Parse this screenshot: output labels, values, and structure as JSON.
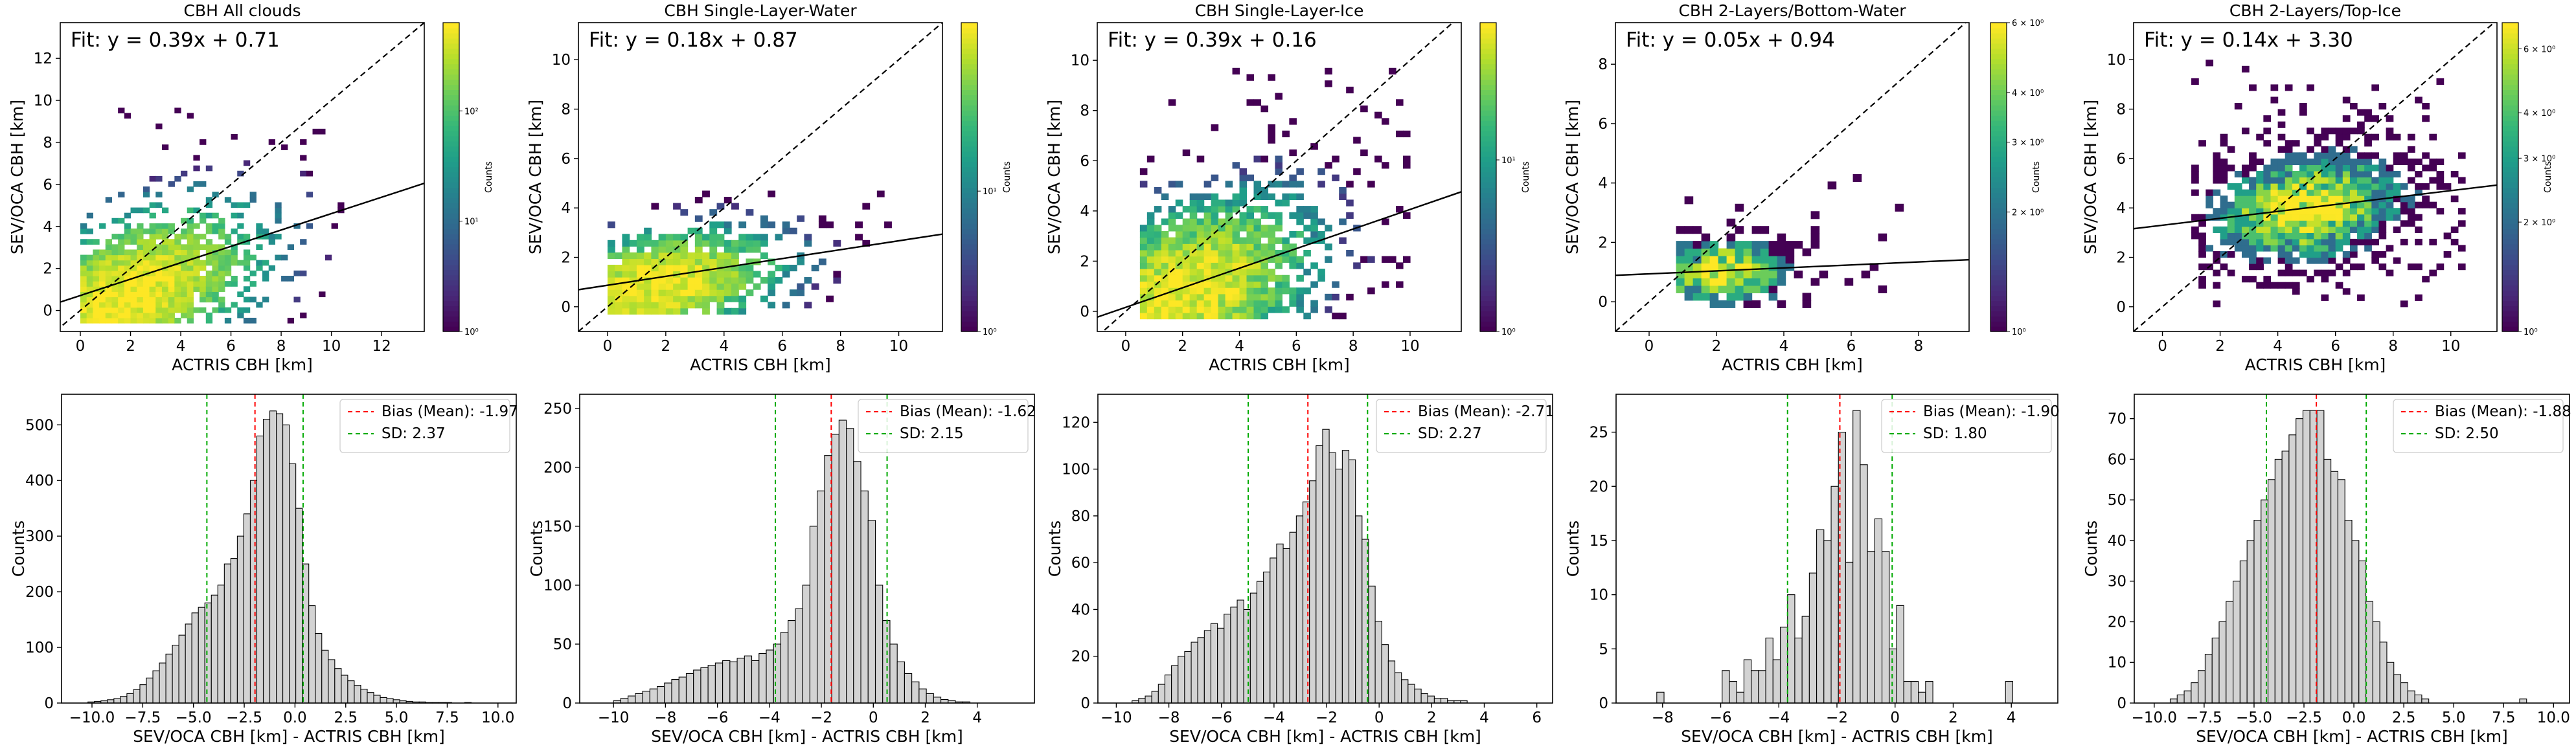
{
  "chart_data": [
    {
      "type": "heatmap",
      "title": "CBH All clouds",
      "xlabel": "ACTRIS CBH [km]",
      "ylabel": "SEV/OCA CBH [km]",
      "xlim": [
        -0.8,
        13.7
      ],
      "ylim": [
        -1.0,
        13.7
      ],
      "xticks": [
        0,
        2,
        4,
        6,
        8,
        10,
        12
      ],
      "yticks": [
        0,
        2,
        4,
        6,
        8,
        10,
        12
      ],
      "fit": {
        "label": "Fit: y = 0.39x + 0.71",
        "slope": 0.39,
        "intercept": 0.71
      },
      "one_to_one_line": true,
      "colorbar": {
        "label": "Counts",
        "scale": "log",
        "ticks": [
          "10⁰",
          "10¹",
          "10²"
        ],
        "ticks_exp": [
          0,
          1,
          2
        ],
        "vmax_exp": 2.8
      },
      "density": {
        "xmin": 0.0,
        "xmax": 10.5,
        "ymin": -0.6,
        "ymax": 9.5,
        "peak": [
          1.8,
          0.7
        ],
        "spread": [
          2.8,
          1.9
        ],
        "trend": 0.39
      }
    },
    {
      "type": "heatmap",
      "title": "CBH Single-Layer-Water",
      "xlabel": "ACTRIS CBH [km]",
      "ylabel": "SEV/OCA CBH [km]",
      "xlim": [
        -1.0,
        11.5
      ],
      "ylim": [
        -1.0,
        11.5
      ],
      "xticks": [
        0,
        2,
        4,
        6,
        8,
        10
      ],
      "yticks": [
        0,
        2,
        4,
        6,
        8,
        10
      ],
      "fit": {
        "label": "Fit: y = 0.18x + 0.87",
        "slope": 0.18,
        "intercept": 0.87
      },
      "one_to_one_line": true,
      "colorbar": {
        "label": "Counts",
        "scale": "log",
        "ticks": [
          "10⁰",
          "10¹"
        ],
        "ticks_exp": [
          0,
          1
        ],
        "vmax_exp": 2.2
      },
      "density": {
        "xmin": 0.0,
        "xmax": 10.0,
        "ymin": -0.3,
        "ymax": 5.2,
        "peak": [
          1.8,
          0.9
        ],
        "spread": [
          2.4,
          1.2
        ],
        "trend": 0.18
      }
    },
    {
      "type": "heatmap",
      "title": "CBH Single-Layer-Ice",
      "xlabel": "ACTRIS CBH [km]",
      "ylabel": "SEV/OCA CBH [km]",
      "xlim": [
        -1.0,
        11.8
      ],
      "ylim": [
        -0.8,
        11.5
      ],
      "xticks": [
        0,
        2,
        4,
        6,
        8,
        10
      ],
      "yticks": [
        0,
        2,
        4,
        6,
        8,
        10
      ],
      "fit": {
        "label": "Fit: y = 0.39x + 0.16",
        "slope": 0.39,
        "intercept": 0.16
      },
      "one_to_one_line": true,
      "colorbar": {
        "label": "Counts",
        "scale": "log",
        "ticks": [
          "10⁰",
          "10¹"
        ],
        "ticks_exp": [
          0,
          1
        ],
        "vmax_exp": 1.8
      },
      "density": {
        "xmin": 0.5,
        "xmax": 10.0,
        "ymin": -0.3,
        "ymax": 9.5,
        "peak": [
          2.0,
          0.6
        ],
        "spread": [
          2.8,
          2.2
        ],
        "trend": 0.39
      }
    },
    {
      "type": "heatmap",
      "title": "CBH 2-Layers/Bottom-Water",
      "xlabel": "ACTRIS CBH [km]",
      "ylabel": "SEV/OCA CBH [km]",
      "xlim": [
        -1.0,
        9.5
      ],
      "ylim": [
        -1.0,
        9.4
      ],
      "xticks": [
        0,
        2,
        4,
        6,
        8
      ],
      "yticks": [
        0,
        2,
        4,
        6,
        8
      ],
      "fit": {
        "label": "Fit: y = 0.05x + 0.94",
        "slope": 0.05,
        "intercept": 0.94
      },
      "one_to_one_line": true,
      "colorbar": {
        "label": "Counts",
        "scale": "log",
        "ticks": [
          "10⁰",
          "2 × 10⁰",
          "3 × 10⁰",
          "4 × 10⁰",
          "6 × 10⁰"
        ],
        "ticks_exp": [
          0,
          0.301,
          0.477,
          0.602,
          0.778
        ],
        "vmax_exp": 0.778
      },
      "density": {
        "xmin": 0.8,
        "xmax": 7.5,
        "ymin": -0.2,
        "ymax": 4.2,
        "peak": [
          2.2,
          1.0
        ],
        "spread": [
          1.4,
          0.8
        ],
        "trend": 0.05
      }
    },
    {
      "type": "heatmap",
      "title": "CBH 2-Layers/Top-Ice",
      "xlabel": "ACTRIS CBH [km]",
      "ylabel": "SEV/OCA CBH [km]",
      "xlim": [
        -1.0,
        11.6
      ],
      "ylim": [
        -1.0,
        11.5
      ],
      "xticks": [
        0,
        2,
        4,
        6,
        8,
        10
      ],
      "yticks": [
        0,
        2,
        4,
        6,
        8,
        10
      ],
      "fit": {
        "label": "Fit: y = 0.14x + 3.30",
        "slope": 0.14,
        "intercept": 3.3
      },
      "one_to_one_line": true,
      "colorbar": {
        "label": "Counts",
        "scale": "log",
        "ticks": [
          "10⁰",
          "2 × 10⁰",
          "3 × 10⁰",
          "4 × 10⁰",
          "6 × 10⁰"
        ],
        "ticks_exp": [
          0,
          0.301,
          0.477,
          0.602,
          0.778
        ],
        "vmax_exp": 0.85
      },
      "density": {
        "xmin": 1.0,
        "xmax": 10.5,
        "ymin": 0.0,
        "ymax": 10.0,
        "peak": [
          5.0,
          4.0
        ],
        "spread": [
          2.4,
          1.5
        ],
        "trend": 0.14
      }
    },
    {
      "type": "bar",
      "subtype": "histogram",
      "xlabel": "SEV/OCA CBH [km] - ACTRIS CBH [km]",
      "ylabel": "Counts",
      "xlim": [
        -11.5,
        10.9
      ],
      "ylim": [
        0,
        555
      ],
      "xticks": [
        -10.0,
        -7.5,
        -5.0,
        -2.5,
        0.0,
        2.5,
        5.0,
        7.5,
        10.0
      ],
      "xtick_labels": [
        "−10.0",
        "−7.5",
        "−5.0",
        "−2.5",
        "0.0",
        "2.5",
        "5.0",
        "7.5",
        "10.0"
      ],
      "yticks": [
        0,
        100,
        200,
        300,
        400,
        500
      ],
      "bin_start": -10.2,
      "bin_width": 0.32,
      "values": [
        2,
        3,
        4,
        6,
        8,
        12,
        17,
        24,
        33,
        45,
        58,
        72,
        88,
        104,
        122,
        142,
        162,
        172,
        180,
        194,
        212,
        250,
        260,
        300,
        340,
        400,
        480,
        510,
        525,
        520,
        500,
        430,
        350,
        250,
        175,
        125,
        95,
        78,
        62,
        50,
        40,
        32,
        25,
        19,
        14,
        10,
        8,
        6,
        4,
        3,
        2,
        2,
        1,
        1,
        1,
        1,
        0,
        0,
        1
      ],
      "series": [
        {
          "name": "Bias (Mean): -1.97",
          "value": -1.97,
          "color": "#ff0000"
        },
        {
          "name": "SD: 2.37",
          "lines": [
            -4.34,
            0.4
          ],
          "color": "#00aa00"
        }
      ]
    },
    {
      "type": "bar",
      "subtype": "histogram",
      "xlabel": "SEV/OCA CBH [km] - ACTRIS CBH [km]",
      "ylabel": "Counts",
      "xlim": [
        -11.3,
        6.2
      ],
      "ylim": [
        0,
        262
      ],
      "xticks": [
        -10,
        -8,
        -6,
        -4,
        -2,
        0,
        2,
        4
      ],
      "xtick_labels": [
        "−10",
        "−8",
        "−6",
        "−4",
        "−2",
        "0",
        "2",
        "4"
      ],
      "yticks": [
        0,
        50,
        100,
        150,
        200,
        250
      ],
      "bin_start": -10.0,
      "bin_width": 0.28,
      "values": [
        2,
        4,
        6,
        8,
        10,
        12,
        14,
        17,
        20,
        22,
        25,
        28,
        30,
        32,
        34,
        36,
        35,
        38,
        40,
        36,
        42,
        45,
        50,
        60,
        70,
        80,
        100,
        150,
        180,
        210,
        228,
        240,
        233,
        205,
        180,
        155,
        100,
        70,
        50,
        35,
        25,
        18,
        12,
        8,
        5,
        3,
        2,
        1,
        1
      ],
      "series": [
        {
          "name": "Bias (Mean): -1.62",
          "value": -1.62,
          "color": "#ff0000"
        },
        {
          "name": "SD: 2.15",
          "lines": [
            -3.77,
            0.53
          ],
          "color": "#00aa00"
        }
      ]
    },
    {
      "type": "bar",
      "subtype": "histogram",
      "xlabel": "SEV/OCA CBH [km] - ACTRIS CBH [km]",
      "ylabel": "Counts",
      "xlim": [
        -10.7,
        6.6
      ],
      "ylim": [
        0,
        132
      ],
      "xticks": [
        -10,
        -8,
        -6,
        -4,
        -2,
        0,
        2,
        4,
        6
      ],
      "xtick_labels": [
        "−10",
        "−8",
        "−6",
        "−4",
        "−2",
        "0",
        "2",
        "4",
        "6"
      ],
      "yticks": [
        0,
        20,
        40,
        60,
        80,
        100,
        120
      ],
      "bin_start": -9.4,
      "bin_width": 0.25,
      "values": [
        1,
        2,
        3,
        5,
        8,
        12,
        16,
        20,
        22,
        26,
        28,
        31,
        34,
        32,
        38,
        41,
        44,
        40,
        47,
        52,
        56,
        62,
        68,
        66,
        73,
        80,
        86,
        95,
        110,
        117,
        107,
        100,
        108,
        104,
        80,
        70,
        50,
        35,
        25,
        18,
        13,
        10,
        8,
        6,
        4,
        3,
        2,
        2,
        1,
        1,
        1
      ],
      "series": [
        {
          "name": "Bias (Mean): -2.71",
          "value": -2.71,
          "color": "#ff0000"
        },
        {
          "name": "SD: 2.27",
          "lines": [
            -4.98,
            -0.44
          ],
          "color": "#00aa00"
        }
      ]
    },
    {
      "type": "bar",
      "subtype": "histogram",
      "xlabel": "SEV/OCA CBH [km] - ACTRIS CBH [km]",
      "ylabel": "Counts",
      "xlim": [
        -9.6,
        5.6
      ],
      "ylim": [
        0,
        28.5
      ],
      "xticks": [
        -8,
        -6,
        -4,
        -2,
        0,
        2,
        4
      ],
      "xtick_labels": [
        "−8",
        "−6",
        "−4",
        "−2",
        "0",
        "2",
        "4"
      ],
      "yticks": [
        0,
        5,
        10,
        15,
        20,
        25
      ],
      "bin_start": -8.2,
      "bin_width": 0.25,
      "values": [
        1,
        0,
        0,
        0,
        0,
        0,
        0,
        0,
        0,
        3,
        2,
        1,
        4,
        3,
        3,
        6,
        4,
        7,
        10,
        6,
        8,
        12,
        16,
        15,
        20,
        25,
        13,
        27,
        22,
        14,
        17,
        14,
        5,
        9,
        2,
        2,
        1,
        2,
        0,
        0,
        0,
        0,
        0,
        0,
        0,
        0,
        0,
        0,
        2
      ],
      "series": [
        {
          "name": "Bias (Mean): -1.90",
          "value": -1.9,
          "color": "#ff0000"
        },
        {
          "name": "SD: 1.80",
          "lines": [
            -3.7,
            -0.1
          ],
          "color": "#00aa00"
        }
      ]
    },
    {
      "type": "bar",
      "subtype": "histogram",
      "xlabel": "SEV/OCA CBH [km] - ACTRIS CBH [km]",
      "ylabel": "Counts",
      "xlim": [
        -11.0,
        10.8
      ],
      "ylim": [
        0,
        76
      ],
      "xticks": [
        -10.0,
        -7.5,
        -5.0,
        -2.5,
        0.0,
        2.5,
        5.0,
        7.5,
        10.0
      ],
      "xtick_labels": [
        "−10.0",
        "−7.5",
        "−5.0",
        "−2.5",
        "0.0",
        "2.5",
        "5.0",
        "7.5",
        "10.0"
      ],
      "yticks": [
        0,
        10,
        20,
        30,
        40,
        50,
        60,
        70
      ],
      "bin_start": -9.2,
      "bin_width": 0.35,
      "values": [
        1,
        2,
        3,
        5,
        8,
        12,
        16,
        20,
        25,
        30,
        35,
        40,
        45,
        50,
        55,
        60,
        62,
        66,
        70,
        72,
        72,
        72,
        60,
        57,
        55,
        45,
        40,
        35,
        25,
        20,
        15,
        10,
        7,
        5,
        3,
        2,
        1,
        0,
        0,
        0,
        0,
        0,
        0,
        0,
        0,
        0,
        0,
        0,
        0,
        0,
        1
      ],
      "series": [
        {
          "name": "Bias (Mean): -1.88",
          "value": -1.88,
          "color": "#ff0000"
        },
        {
          "name": "SD: 2.50",
          "lines": [
            -4.38,
            0.62
          ],
          "color": "#00aa00"
        }
      ]
    }
  ]
}
